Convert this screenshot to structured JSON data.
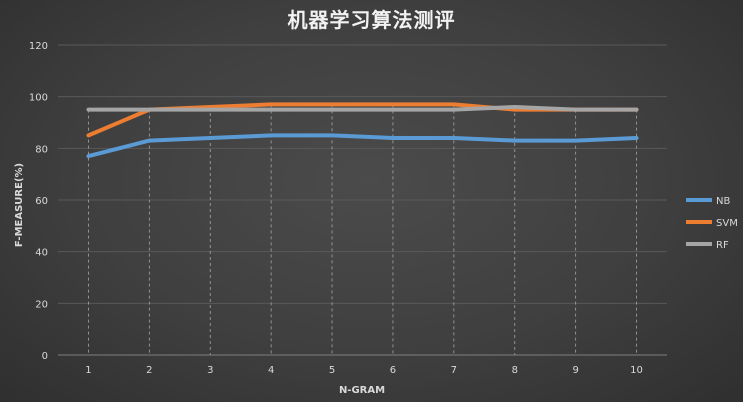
{
  "chart_data": {
    "type": "line",
    "title": "机器学习算法测评",
    "xlabel": "N-GRAM",
    "ylabel": "F-MEASURE(%)",
    "categories": [
      "1",
      "2",
      "3",
      "4",
      "5",
      "6",
      "7",
      "8",
      "9",
      "10"
    ],
    "ylim": [
      0,
      120
    ],
    "yticks": [
      "0",
      "20",
      "40",
      "60",
      "80",
      "100",
      "120"
    ],
    "grid": true,
    "legend": "right",
    "series": [
      {
        "name": "NB",
        "color": "#5b9bd5",
        "values": [
          77,
          83,
          84,
          85,
          85,
          84,
          84,
          83,
          83,
          84
        ]
      },
      {
        "name": "SVM",
        "color": "#ed7d31",
        "values": [
          85,
          95,
          96,
          97,
          97,
          97,
          97,
          95,
          95,
          95
        ]
      },
      {
        "name": "RF",
        "color": "#a5a5a5",
        "values": [
          95,
          95,
          95,
          95,
          95,
          95,
          95,
          96,
          95,
          95
        ]
      }
    ]
  }
}
